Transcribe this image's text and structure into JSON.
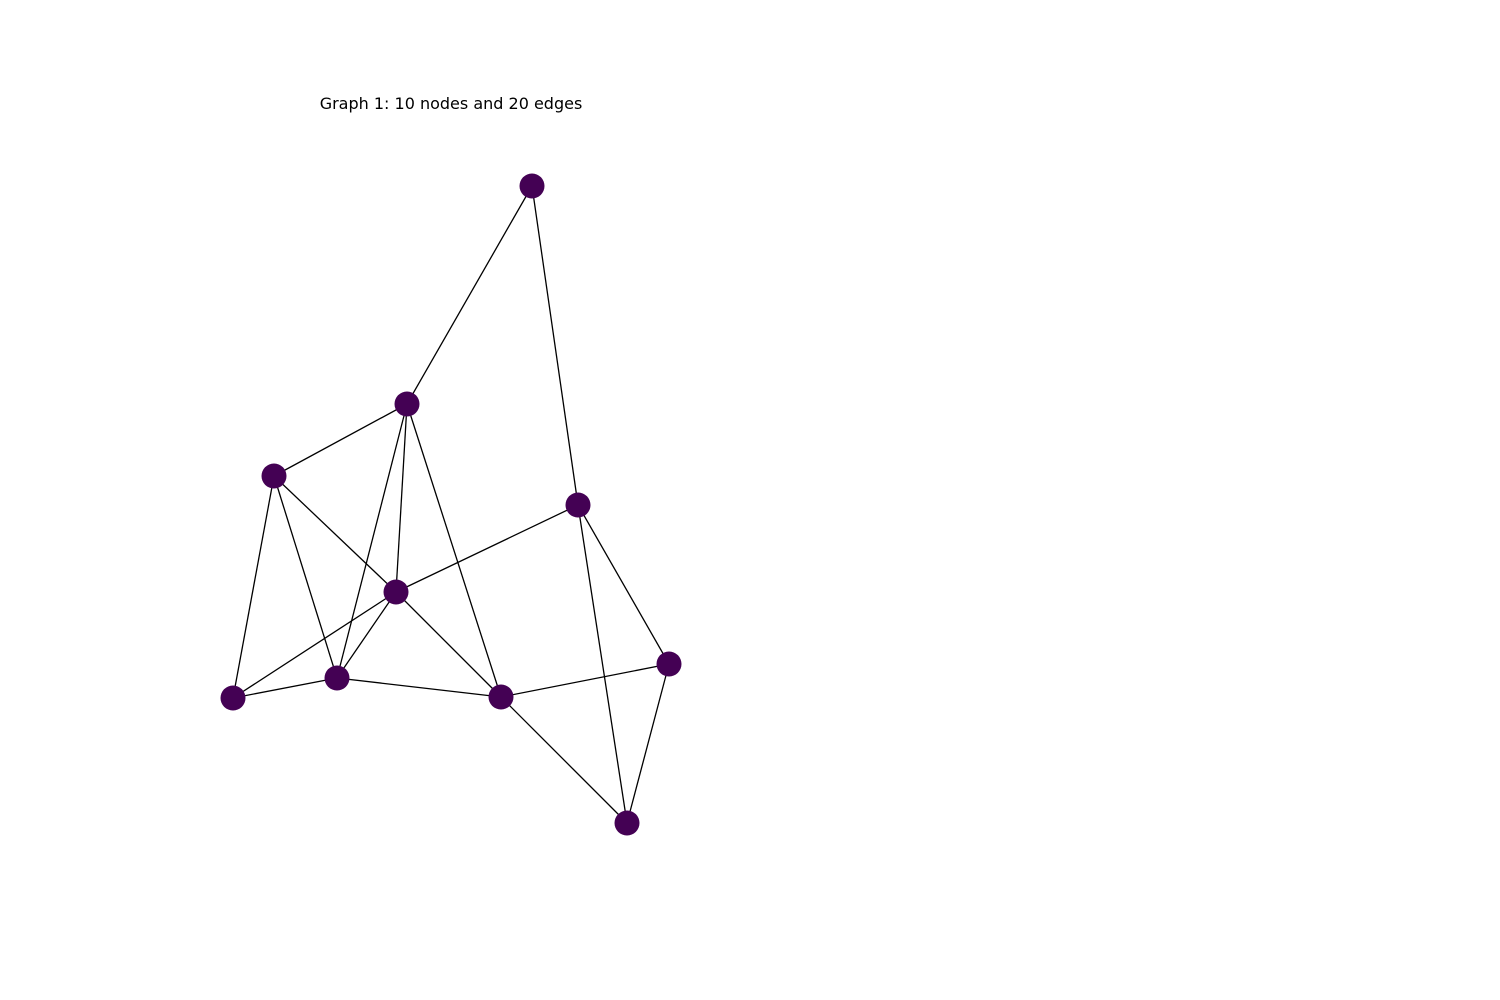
{
  "title": "Graph 1: 10 nodes and 20 edges",
  "graph": {
    "node_color": "#440154",
    "edge_color": "#000000",
    "nodes": [
      "n0",
      "n1",
      "n2",
      "n3",
      "n4",
      "n5",
      "n6",
      "n7",
      "n8",
      "n9"
    ],
    "edges": [
      [
        "n0",
        "n1"
      ],
      [
        "n0",
        "n4"
      ],
      [
        "n1",
        "n2"
      ],
      [
        "n1",
        "n3"
      ],
      [
        "n1",
        "n5"
      ],
      [
        "n1",
        "n7"
      ],
      [
        "n2",
        "n3"
      ],
      [
        "n2",
        "n5"
      ],
      [
        "n2",
        "n6"
      ],
      [
        "n3",
        "n4"
      ],
      [
        "n3",
        "n6"
      ],
      [
        "n3",
        "n7"
      ],
      [
        "n4",
        "n8"
      ],
      [
        "n4",
        "n9"
      ],
      [
        "n5",
        "n6"
      ],
      [
        "n5",
        "n7"
      ],
      [
        "n7",
        "n8"
      ],
      [
        "n7",
        "n9"
      ],
      [
        "n8",
        "n9"
      ],
      [
        "n3",
        "n5"
      ]
    ]
  }
}
